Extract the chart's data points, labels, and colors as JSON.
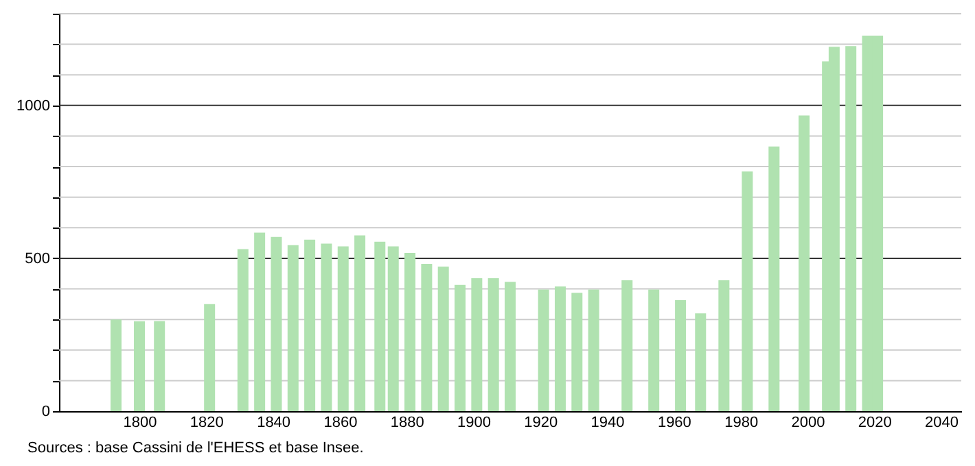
{
  "chart_data": {
    "type": "bar",
    "x": [
      1793,
      1800,
      1806,
      1821,
      1831,
      1836,
      1841,
      1846,
      1851,
      1856,
      1861,
      1866,
      1872,
      1876,
      1881,
      1886,
      1891,
      1896,
      1901,
      1906,
      1911,
      1921,
      1926,
      1931,
      1936,
      1946,
      1954,
      1962,
      1968,
      1975,
      1982,
      1990,
      1999,
      2006,
      2008,
      2013,
      2018,
      2021
    ],
    "values": [
      300,
      294,
      295,
      350,
      530,
      584,
      570,
      543,
      561,
      548,
      539,
      575,
      554,
      539,
      518,
      482,
      473,
      413,
      435,
      435,
      423,
      398,
      408,
      387,
      398,
      428,
      398,
      363,
      320,
      428,
      784,
      866,
      967,
      1144,
      1192,
      1194,
      1228,
      1228
    ],
    "color": "#b0e2b0",
    "xlim": [
      1778,
      2044
    ],
    "xticks": [
      1800,
      1820,
      1840,
      1860,
      1880,
      1900,
      1920,
      1940,
      1960,
      1980,
      2000,
      2020,
      2040
    ],
    "ylim": [
      0,
      1300
    ],
    "yticks": [
      0,
      {
        "value": 100,
        "label": null
      },
      {
        "value": 200,
        "label": null
      },
      {
        "value": 300,
        "label": null
      },
      {
        "value": 400,
        "label": null
      },
      500,
      {
        "value": 600,
        "label": null
      },
      {
        "value": 700,
        "label": null
      },
      {
        "value": 800,
        "label": null
      },
      {
        "value": 900,
        "label": null
      },
      1000,
      {
        "value": 1100,
        "label": null
      },
      {
        "value": 1200,
        "label": null
      },
      {
        "value": 1300,
        "label": null
      }
    ],
    "grid": "y",
    "annotations": [
      "Sources : base Cassini de l'EHESS et base Insee."
    ]
  }
}
